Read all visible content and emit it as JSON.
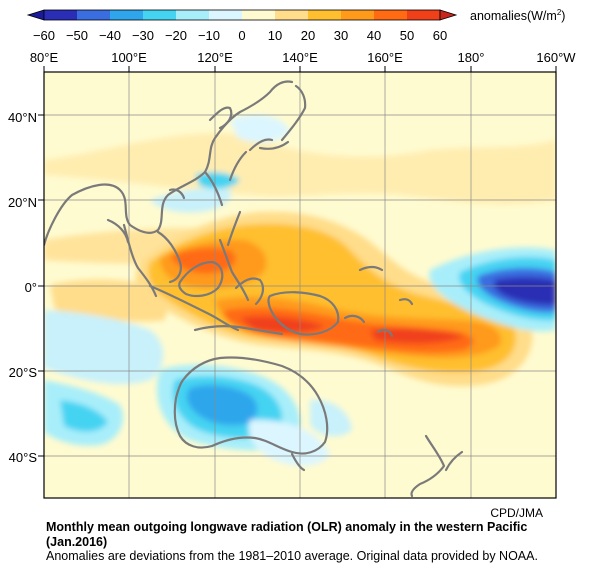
{
  "colorbar": {
    "ticks": [
      "−60",
      "−50",
      "−40",
      "−30",
      "−20",
      "−10",
      "0",
      "10",
      "20",
      "30",
      "40",
      "50",
      "60"
    ],
    "colors": [
      "#2a2db5",
      "#3a6de0",
      "#2fa6ec",
      "#45d3f2",
      "#a8eefa",
      "#dcf6ff",
      "#fffbd0",
      "#ffdd8a",
      "#ffbf2e",
      "#ff9a1a",
      "#ff6a12",
      "#f0401a"
    ],
    "label_prefix": "anomalies(W/m",
    "label_sup": "2",
    "label_suffix": ")"
  },
  "map": {
    "lon_labels": [
      "80°E",
      "100°E",
      "120°E",
      "140°E",
      "160°E",
      "180°",
      "160°W"
    ],
    "lat_labels": [
      "40°N",
      "20°N",
      "0°",
      "20°S",
      "40°S"
    ],
    "credit": "CPD/JMA"
  },
  "caption": {
    "title": "Monthly mean outgoing longwave radiation (OLR) anomaly in the western Pacific (Jan.2016)",
    "note": "Anomalies are deviations from the 1981–2010 average. Original data provided by NOAA."
  }
}
